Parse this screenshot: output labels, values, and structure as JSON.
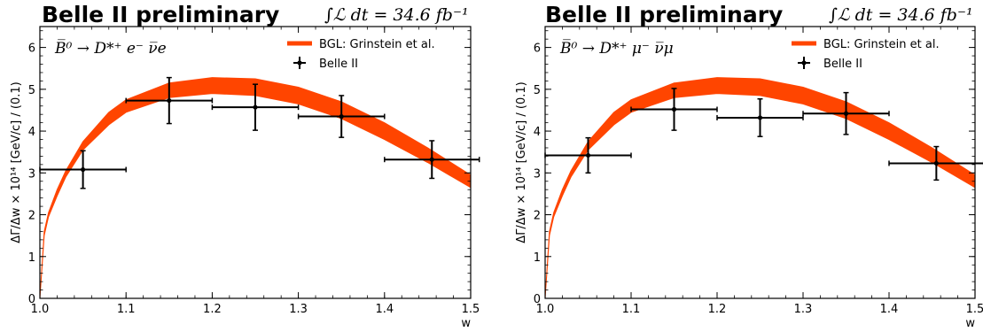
{
  "chart_data": [
    {
      "type": "line",
      "title": "Belle II preliminary",
      "luminosity": "∫ℒ dt = 34.6 fb⁻¹",
      "process": "B̅⁰ → D*⁺ e⁻ ν̅e",
      "xlabel": "w",
      "ylabel": "ΔΓ/Δw × 10¹⁴ [GeV/c] / (0.1)",
      "xlim": [
        1.0,
        1.5
      ],
      "ylim": [
        0,
        6.5
      ],
      "xticks": [
        "1.0",
        "1.1",
        "1.2",
        "1.3",
        "1.4",
        "1.5"
      ],
      "yticks": [
        "0",
        "1",
        "2",
        "3",
        "4",
        "5",
        "6"
      ],
      "legend_position": "top-right",
      "band": {
        "name": "BGL: Grinstein et al.",
        "color": "#ff4500",
        "x": [
          1.0,
          1.005,
          1.01,
          1.02,
          1.03,
          1.05,
          1.08,
          1.1,
          1.15,
          1.2,
          1.25,
          1.3,
          1.35,
          1.4,
          1.45,
          1.5
        ],
        "y_low": [
          0.0,
          1.5,
          1.95,
          2.45,
          2.9,
          3.55,
          4.15,
          4.45,
          4.8,
          4.9,
          4.85,
          4.65,
          4.3,
          3.8,
          3.25,
          2.65
        ],
        "y_high": [
          0.0,
          1.6,
          2.05,
          2.6,
          3.05,
          3.75,
          4.45,
          4.75,
          5.15,
          5.28,
          5.25,
          5.05,
          4.7,
          4.2,
          3.6,
          2.95
        ]
      },
      "points": {
        "name": "Belle II",
        "color": "#000000",
        "x": [
          1.05,
          1.15,
          1.25,
          1.35,
          1.455
        ],
        "y": [
          3.08,
          4.73,
          4.57,
          4.35,
          3.32
        ],
        "xerr": [
          0.05,
          0.05,
          0.05,
          0.05,
          0.055
        ],
        "yerr": [
          0.45,
          0.55,
          0.55,
          0.5,
          0.45
        ]
      }
    },
    {
      "type": "line",
      "title": "Belle II preliminary",
      "luminosity": "∫ℒ dt = 34.6 fb⁻¹",
      "process": "B̅⁰ → D*⁺ μ⁻ ν̅μ",
      "xlabel": "w",
      "ylabel": "ΔΓ/Δw × 10¹⁴ [GeV/c] / (0.1)",
      "xlim": [
        1.0,
        1.5
      ],
      "ylim": [
        0,
        6.5
      ],
      "xticks": [
        "1.0",
        "1.1",
        "1.2",
        "1.3",
        "1.4",
        "1.5"
      ],
      "yticks": [
        "0",
        "1",
        "2",
        "3",
        "4",
        "5",
        "6"
      ],
      "legend_position": "top-right",
      "band": {
        "name": "BGL: Grinstein et al.",
        "color": "#ff4500",
        "x": [
          1.0,
          1.005,
          1.01,
          1.02,
          1.03,
          1.05,
          1.08,
          1.1,
          1.15,
          1.2,
          1.25,
          1.3,
          1.35,
          1.4,
          1.45,
          1.5
        ],
        "y_low": [
          0.0,
          1.5,
          1.95,
          2.45,
          2.9,
          3.55,
          4.15,
          4.45,
          4.8,
          4.9,
          4.85,
          4.65,
          4.3,
          3.8,
          3.25,
          2.65
        ],
        "y_high": [
          0.0,
          1.6,
          2.05,
          2.6,
          3.05,
          3.75,
          4.45,
          4.75,
          5.15,
          5.28,
          5.25,
          5.05,
          4.7,
          4.2,
          3.6,
          2.95
        ]
      },
      "points": {
        "name": "Belle II",
        "color": "#000000",
        "x": [
          1.05,
          1.15,
          1.25,
          1.35,
          1.455
        ],
        "y": [
          3.42,
          4.52,
          4.32,
          4.42,
          3.23
        ],
        "xerr": [
          0.05,
          0.05,
          0.05,
          0.05,
          0.055
        ],
        "yerr": [
          0.42,
          0.5,
          0.45,
          0.5,
          0.4
        ]
      }
    }
  ]
}
